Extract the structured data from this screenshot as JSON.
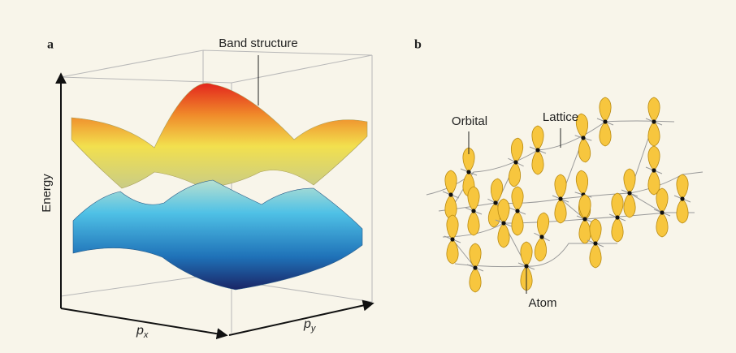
{
  "panel_a": {
    "label": "a",
    "title": "Band structure",
    "y_axis": "Energy",
    "x_axis": {
      "text": "p",
      "subscript": "x"
    },
    "z_axis": {
      "text": "p",
      "subscript": "y"
    }
  },
  "panel_b": {
    "label": "b",
    "orbital": "Orbital",
    "lattice": "Lattice",
    "atom": "Atom"
  }
}
